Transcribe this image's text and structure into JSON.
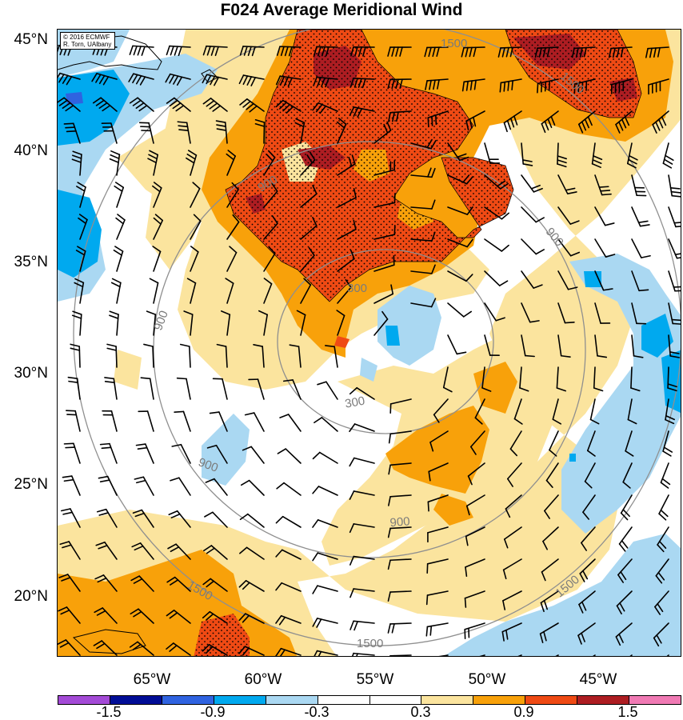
{
  "title": "F024 Average Meridional Wind",
  "credit": {
    "line1": "© 2016 ECMWF",
    "line2": "R. Torn, UAlbany"
  },
  "latitude_labels": [
    "45°N",
    "40°N",
    "35°N",
    "30°N",
    "25°N",
    "20°N"
  ],
  "longitude_labels": [
    "65°W",
    "60°W",
    "55°W",
    "50°W",
    "45°W"
  ],
  "contour_labels": [
    "300",
    "300",
    "900",
    "900",
    "900",
    "900",
    "900",
    "1500",
    "1500",
    "1500",
    "1500",
    "1500"
  ],
  "colorbar": {
    "labels": [
      "-1.5",
      "-0.9",
      "-0.3",
      "0.3",
      "0.9",
      "1.5"
    ],
    "colors": [
      "#a34ad6",
      "#000d96",
      "#2f63e0",
      "#00a9ef",
      "#aad8f2",
      "#ffffff",
      "#ffffff",
      "#fbe49e",
      "#f8a10a",
      "#ef4a14",
      "#ad1d22",
      "#f07ab4"
    ]
  },
  "shading_colors": {
    "pos_light": "#fbe49e",
    "pos_mid": "#f8a10a",
    "pos_high": "#ef4a14",
    "pos_max": "#ad1d22",
    "neg_light": "#aad8f2",
    "neg_mid": "#00a9ef",
    "neg_deep": "#2f63e0",
    "neg_max": "#000d96",
    "contour": "#8f8f8f"
  }
}
